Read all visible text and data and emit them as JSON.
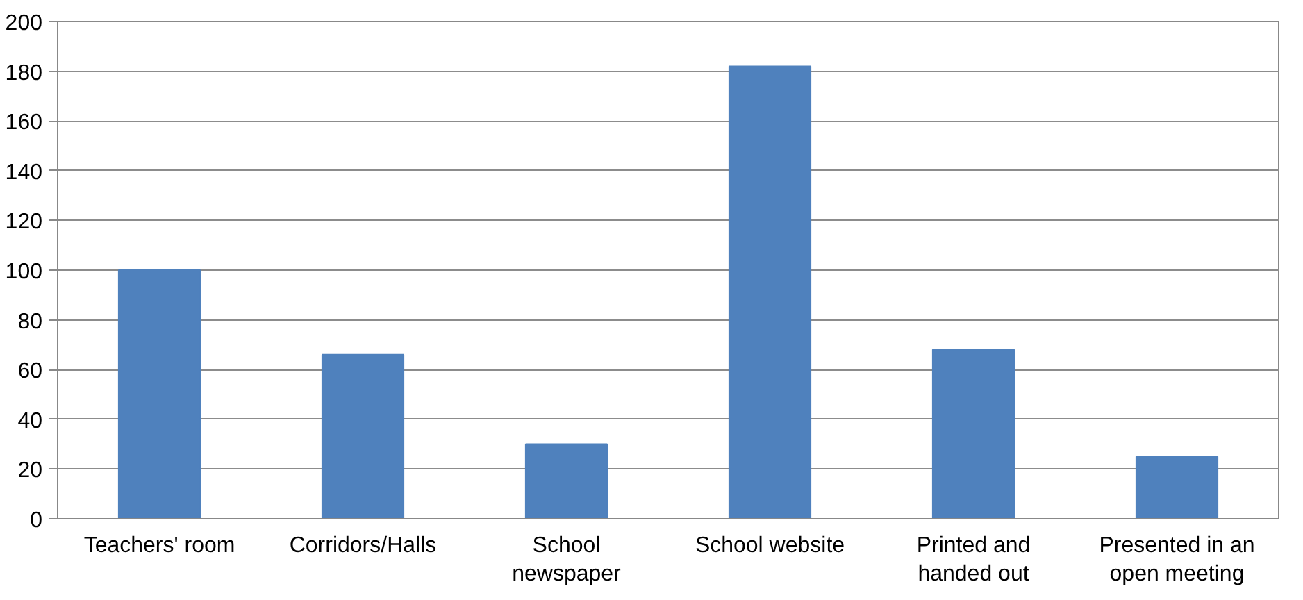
{
  "chart_data": {
    "type": "bar",
    "categories": [
      "Teachers' room",
      "Corridors/Halls",
      "School newspaper",
      "School website",
      "Printed and handed out",
      "Presented in an open meeting"
    ],
    "values": [
      100,
      66,
      30,
      182,
      68,
      25
    ],
    "color": "#4f81bd",
    "ylim": [
      0,
      200
    ],
    "yticks": [
      0,
      20,
      40,
      60,
      80,
      100,
      120,
      140,
      160,
      180,
      200
    ],
    "grid": "y"
  }
}
